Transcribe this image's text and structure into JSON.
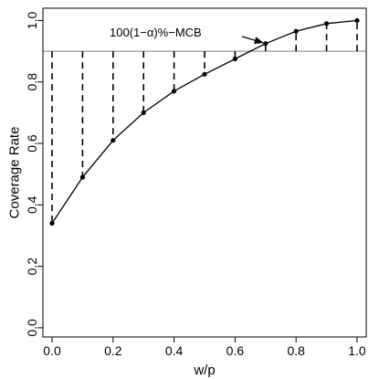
{
  "chart_data": {
    "type": "line",
    "xlabel": "w/p",
    "ylabel": "Coverage Rate",
    "xlim": [
      -0.03,
      1.03
    ],
    "ylim": [
      -0.03,
      1.04
    ],
    "x_ticks": [
      0.0,
      0.2,
      0.4,
      0.6,
      0.8,
      1.0
    ],
    "x_tick_labels": [
      "0.0",
      "0.2",
      "0.4",
      "0.6",
      "0.8",
      "1.0"
    ],
    "y_ticks": [
      0.0,
      0.2,
      0.4,
      0.6,
      0.8,
      1.0
    ],
    "y_tick_labels": [
      "0.0",
      "0.2",
      "0.4",
      "0.6",
      "0.8",
      "1.0"
    ],
    "grid": false,
    "series": [
      {
        "x": [
          0.0,
          0.1,
          0.2,
          0.3,
          0.4,
          0.5,
          0.6,
          0.7,
          0.8,
          0.9,
          1.0
        ],
        "y": [
          0.34,
          0.49,
          0.61,
          0.7,
          0.77,
          0.825,
          0.875,
          0.925,
          0.965,
          0.99,
          1.0
        ],
        "marker": "point",
        "line_color": "#000000"
      }
    ],
    "reference_line": {
      "y": 0.9,
      "color": "#9a9a9a"
    },
    "drop_lines": {
      "to_y": 0.9,
      "style": "dashed"
    },
    "annotation": {
      "text": "100(1−α)%−MCB",
      "arrow_to": {
        "x": 0.7,
        "y": 0.925
      }
    }
  }
}
